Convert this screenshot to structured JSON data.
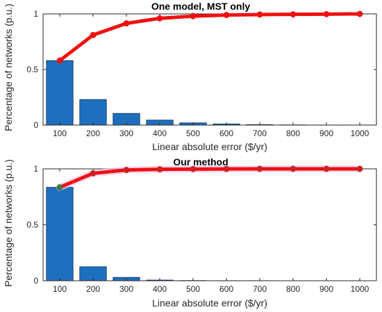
{
  "chart_data": [
    {
      "type": "bar",
      "title": "One model, MST only",
      "xlabel": "Linear absolute error ($/yr)",
      "ylabel": "Percentage of networks (p.u.)",
      "categories": [
        "100",
        "200",
        "300",
        "400",
        "500",
        "600",
        "700",
        "800",
        "900",
        "1000"
      ],
      "ylim": [
        0,
        1
      ],
      "yticks": [
        "0",
        "0.5",
        "1"
      ],
      "grid": false,
      "series": [
        {
          "kind": "bar",
          "values": [
            0.58,
            0.23,
            0.105,
            0.045,
            0.02,
            0.01,
            0.004,
            0.002,
            0.001,
            0.001
          ]
        },
        {
          "kind": "line",
          "values": [
            0.58,
            0.81,
            0.915,
            0.96,
            0.98,
            0.99,
            0.994,
            0.996,
            0.998,
            1.0
          ]
        }
      ],
      "colors": {
        "bar": "#1f6fbf",
        "bar_edge": "#0c2f55",
        "line": "#ee1111",
        "marker": "#ee1111"
      }
    },
    {
      "type": "bar",
      "title": "Our method",
      "xlabel": "Linear absolute error ($/yr)",
      "ylabel": "Percentage of networks (p.u.)",
      "categories": [
        "100",
        "200",
        "300",
        "400",
        "500",
        "600",
        "700",
        "800",
        "900",
        "1000"
      ],
      "ylim": [
        0,
        1
      ],
      "yticks": [
        "0",
        "0.5",
        "1"
      ],
      "grid": false,
      "series": [
        {
          "kind": "bar",
          "values": [
            0.835,
            0.125,
            0.03,
            0.006,
            0.002,
            0.001,
            0.001,
            0.0,
            0.0,
            0.0
          ]
        },
        {
          "kind": "line",
          "values": [
            0.835,
            0.96,
            0.99,
            0.996,
            0.998,
            0.999,
            1.0,
            1.0,
            1.0,
            1.0
          ]
        }
      ],
      "colors": {
        "bar": "#1f6fbf",
        "bar_edge": "#0c2f55",
        "line": "#ee1111",
        "marker": "#cc2222",
        "first_marker": "#3e7a3e"
      }
    }
  ]
}
